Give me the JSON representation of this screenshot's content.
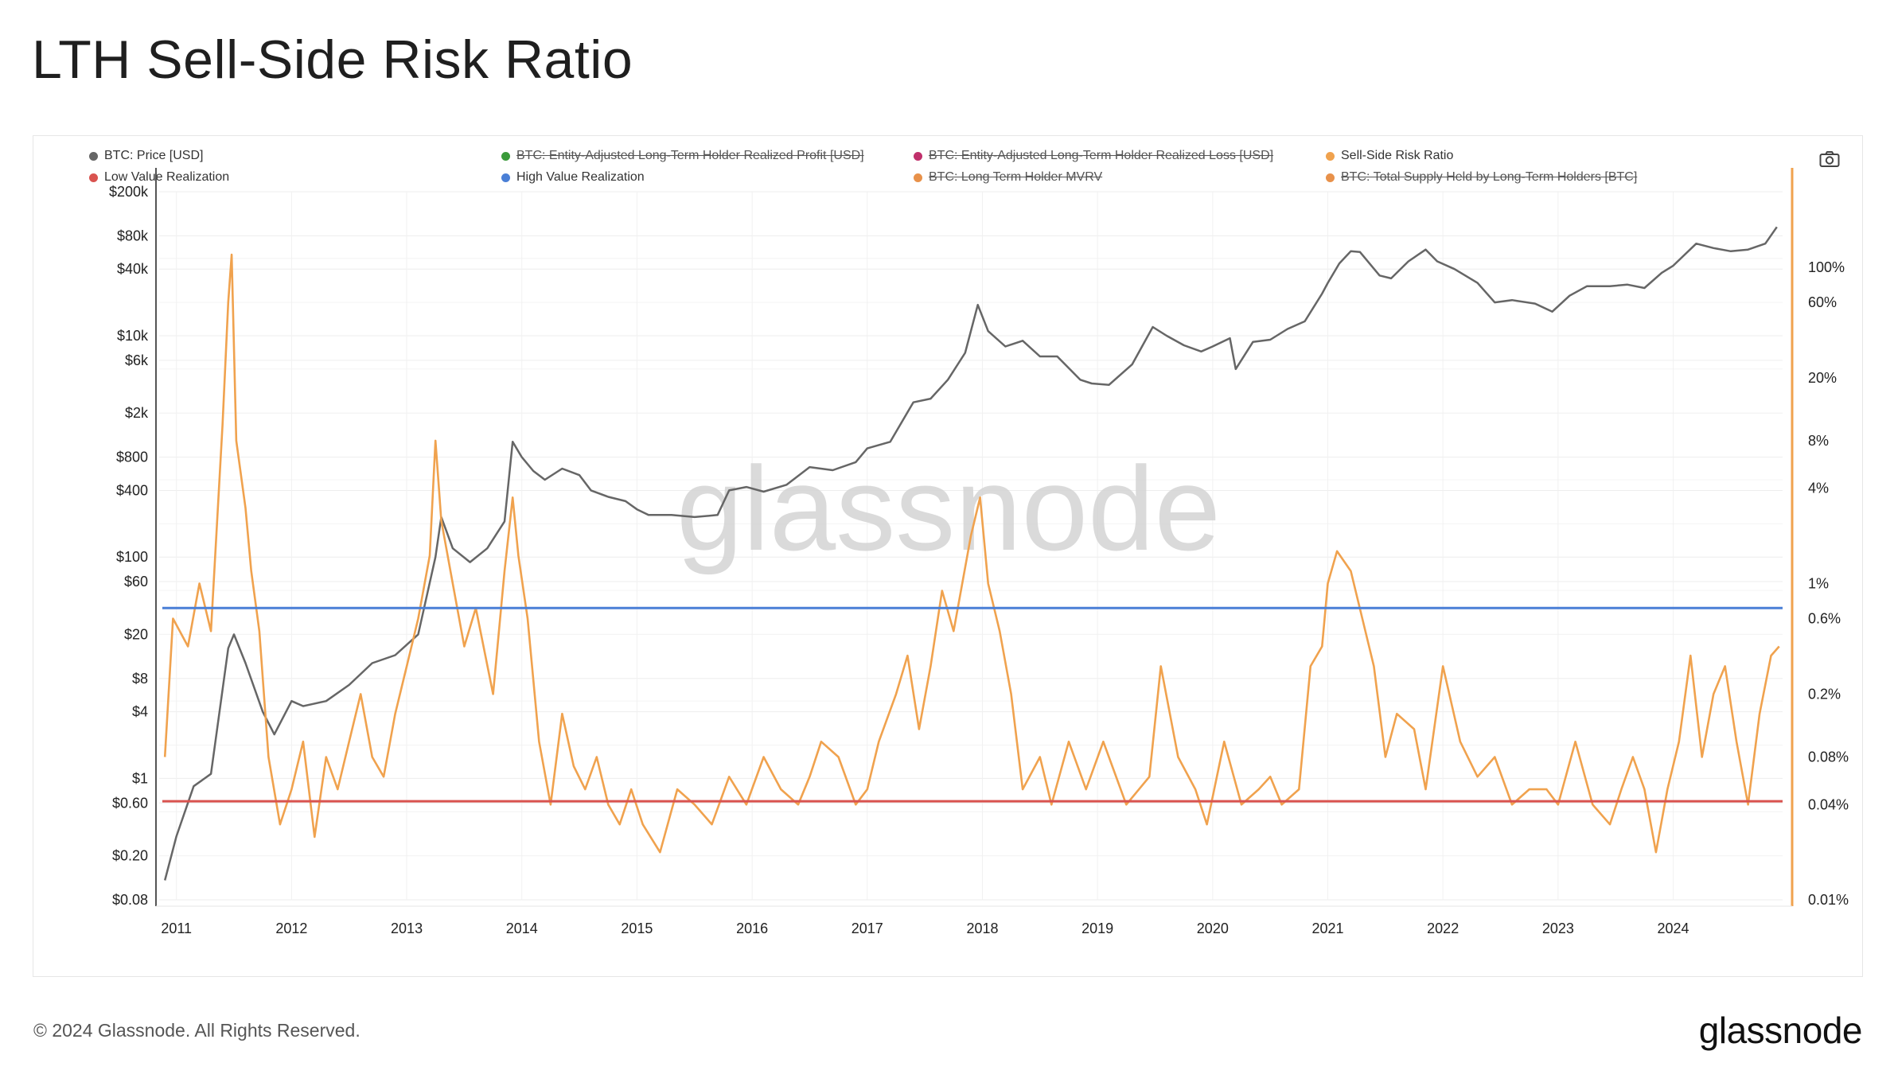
{
  "page": {
    "title": "LTH Sell-Side Risk Ratio",
    "copyright": "© 2024 Glassnode. All Rights Reserved.",
    "logo_text": "glassnode",
    "watermark": "glassnode"
  },
  "legend": [
    {
      "label": "BTC: Price [USD]",
      "color": "#666666",
      "active": true
    },
    {
      "label": "BTC: Entity-Adjusted Long-Term Holder Realized Profit [USD]",
      "color": "#3a9a3a",
      "active": false
    },
    {
      "label": "BTC: Entity-Adjusted Long-Term Holder Realized Loss [USD]",
      "color": "#c0306b",
      "active": false
    },
    {
      "label": "Sell-Side Risk Ratio",
      "color": "#f0a24e",
      "active": true
    },
    {
      "label": "Low Value Realization",
      "color": "#d9534f",
      "active": true
    },
    {
      "label": "High Value Realization",
      "color": "#4a7fd6",
      "active": true
    },
    {
      "label": "BTC: Long Term Holder MVRV",
      "color": "#e8914a",
      "active": false
    },
    {
      "label": "BTC: Total Supply Held by Long-Term Holders [BTC]",
      "color": "#e8914a",
      "active": false
    }
  ],
  "toolbar": {
    "camera_icon": "camera-icon"
  },
  "chart_data": {
    "type": "line",
    "x_axis": {
      "tick_labels": [
        "2011",
        "2012",
        "2013",
        "2014",
        "2015",
        "2016",
        "2017",
        "2018",
        "2019",
        "2020",
        "2021",
        "2022",
        "2023",
        "2024"
      ],
      "range": [
        2010.85,
        2024.95
      ]
    },
    "y_left": {
      "scale": "log",
      "tick_labels": [
        "$200k",
        "$80k",
        "$40k",
        "$10k",
        "$6k",
        "$2k",
        "$800",
        "$400",
        "$100",
        "$60",
        "$20",
        "$8",
        "$4",
        "$1",
        "$0.60",
        "$0.20",
        "$0.08"
      ],
      "tick_values": [
        200000,
        80000,
        40000,
        10000,
        6000,
        2000,
        800,
        400,
        100,
        60,
        20,
        8,
        4,
        1,
        0.6,
        0.2,
        0.08
      ],
      "range": [
        0.08,
        200000
      ]
    },
    "y_right": {
      "scale": "log",
      "tick_labels": [
        "100%",
        "60%",
        "20%",
        "8%",
        "4%",
        "1%",
        "0.6%",
        "0.2%",
        "0.08%",
        "0.04%",
        "0.01%"
      ],
      "tick_values": [
        100,
        60,
        20,
        8,
        4,
        1,
        0.6,
        0.2,
        0.08,
        0.04,
        0.01
      ],
      "range": [
        0.01,
        300
      ]
    },
    "grid": true,
    "series": [
      {
        "name": "BTC: Price [USD]",
        "axis": "left",
        "color": "#666666",
        "x": [
          2010.9,
          2011.0,
          2011.15,
          2011.3,
          2011.45,
          2011.5,
          2011.6,
          2011.75,
          2011.85,
          2012.0,
          2012.1,
          2012.3,
          2012.5,
          2012.7,
          2012.9,
          2013.1,
          2013.25,
          2013.3,
          2013.4,
          2013.55,
          2013.7,
          2013.85,
          2013.92,
          2014.0,
          2014.1,
          2014.2,
          2014.35,
          2014.5,
          2014.6,
          2014.75,
          2014.9,
          2015.0,
          2015.1,
          2015.3,
          2015.5,
          2015.7,
          2015.8,
          2015.95,
          2016.1,
          2016.3,
          2016.5,
          2016.7,
          2016.9,
          2017.0,
          2017.2,
          2017.4,
          2017.55,
          2017.7,
          2017.85,
          2017.96,
          2018.05,
          2018.2,
          2018.35,
          2018.5,
          2018.65,
          2018.85,
          2018.95,
          2019.1,
          2019.3,
          2019.48,
          2019.6,
          2019.75,
          2019.9,
          2020.0,
          2020.15,
          2020.2,
          2020.35,
          2020.5,
          2020.65,
          2020.8,
          2020.95,
          2021.0,
          2021.1,
          2021.2,
          2021.28,
          2021.45,
          2021.55,
          2021.7,
          2021.85,
          2021.95,
          2022.1,
          2022.3,
          2022.45,
          2022.6,
          2022.8,
          2022.95,
          2023.1,
          2023.25,
          2023.45,
          2023.6,
          2023.75,
          2023.9,
          2024.0,
          2024.2,
          2024.35,
          2024.5,
          2024.65,
          2024.8,
          2024.9
        ],
        "y": [
          0.12,
          0.3,
          0.85,
          1.1,
          15,
          20,
          11,
          4,
          2.5,
          5,
          4.5,
          5,
          7,
          11,
          13,
          20,
          100,
          230,
          120,
          90,
          120,
          210,
          1100,
          800,
          600,
          500,
          630,
          550,
          400,
          350,
          320,
          270,
          240,
          240,
          230,
          240,
          400,
          430,
          390,
          450,
          650,
          610,
          720,
          960,
          1100,
          2500,
          2700,
          4000,
          7000,
          19000,
          11000,
          8000,
          9000,
          6500,
          6500,
          4000,
          3700,
          3600,
          5500,
          12000,
          10000,
          8200,
          7200,
          8000,
          9500,
          5000,
          8800,
          9200,
          11500,
          13500,
          24000,
          30000,
          45000,
          58000,
          57000,
          35000,
          33000,
          47000,
          60000,
          47000,
          40000,
          30000,
          20000,
          21000,
          19500,
          16500,
          23000,
          28000,
          28000,
          29000,
          27000,
          37000,
          43000,
          68000,
          62000,
          58000,
          60000,
          68000,
          96000
        ]
      },
      {
        "name": "Sell-Side Risk Ratio",
        "axis": "right",
        "color": "#f0a24e",
        "x": [
          2010.9,
          2010.97,
          2011.1,
          2011.2,
          2011.3,
          2011.4,
          2011.45,
          2011.48,
          2011.52,
          2011.6,
          2011.65,
          2011.72,
          2011.8,
          2011.9,
          2012.0,
          2012.1,
          2012.2,
          2012.3,
          2012.4,
          2012.5,
          2012.6,
          2012.7,
          2012.8,
          2012.9,
          2013.0,
          2013.1,
          2013.2,
          2013.25,
          2013.3,
          2013.4,
          2013.5,
          2013.6,
          2013.75,
          2013.85,
          2013.92,
          2013.97,
          2014.05,
          2014.15,
          2014.25,
          2014.35,
          2014.45,
          2014.55,
          2014.65,
          2014.75,
          2014.85,
          2014.95,
          2015.05,
          2015.2,
          2015.35,
          2015.5,
          2015.65,
          2015.8,
          2015.95,
          2016.1,
          2016.25,
          2016.4,
          2016.5,
          2016.6,
          2016.75,
          2016.9,
          2017.0,
          2017.1,
          2017.25,
          2017.35,
          2017.45,
          2017.55,
          2017.65,
          2017.75,
          2017.9,
          2017.98,
          2018.05,
          2018.15,
          2018.25,
          2018.35,
          2018.5,
          2018.6,
          2018.75,
          2018.9,
          2019.05,
          2019.25,
          2019.45,
          2019.55,
          2019.7,
          2019.85,
          2019.95,
          2020.1,
          2020.25,
          2020.4,
          2020.5,
          2020.6,
          2020.75,
          2020.85,
          2020.95,
          2021.0,
          2021.08,
          2021.2,
          2021.3,
          2021.4,
          2021.5,
          2021.6,
          2021.75,
          2021.85,
          2022.0,
          2022.15,
          2022.3,
          2022.45,
          2022.6,
          2022.75,
          2022.9,
          2023.0,
          2023.15,
          2023.3,
          2023.45,
          2023.55,
          2023.65,
          2023.75,
          2023.85,
          2023.95,
          2024.05,
          2024.15,
          2024.25,
          2024.35,
          2024.45,
          2024.55,
          2024.65,
          2024.75,
          2024.85,
          2024.92
        ],
        "y": [
          0.08,
          0.6,
          0.4,
          1.0,
          0.5,
          10,
          60,
          120,
          8,
          3,
          1.2,
          0.5,
          0.08,
          0.03,
          0.05,
          0.1,
          0.025,
          0.08,
          0.05,
          0.1,
          0.2,
          0.08,
          0.06,
          0.15,
          0.3,
          0.6,
          1.5,
          8,
          2.5,
          1.0,
          0.4,
          0.7,
          0.2,
          1.2,
          3.5,
          1.5,
          0.6,
          0.1,
          0.04,
          0.15,
          0.07,
          0.05,
          0.08,
          0.04,
          0.03,
          0.05,
          0.03,
          0.02,
          0.05,
          0.04,
          0.03,
          0.06,
          0.04,
          0.08,
          0.05,
          0.04,
          0.06,
          0.1,
          0.08,
          0.04,
          0.05,
          0.1,
          0.2,
          0.35,
          0.12,
          0.3,
          0.9,
          0.5,
          2.0,
          3.5,
          1.0,
          0.5,
          0.2,
          0.05,
          0.08,
          0.04,
          0.1,
          0.05,
          0.1,
          0.04,
          0.06,
          0.3,
          0.08,
          0.05,
          0.03,
          0.1,
          0.04,
          0.05,
          0.06,
          0.04,
          0.05,
          0.3,
          0.4,
          1.0,
          1.6,
          1.2,
          0.6,
          0.3,
          0.08,
          0.15,
          0.12,
          0.05,
          0.3,
          0.1,
          0.06,
          0.08,
          0.04,
          0.05,
          0.05,
          0.04,
          0.1,
          0.04,
          0.03,
          0.05,
          0.08,
          0.05,
          0.02,
          0.05,
          0.1,
          0.35,
          0.08,
          0.2,
          0.3,
          0.1,
          0.04,
          0.15,
          0.35,
          0.4
        ]
      },
      {
        "name": "High Value Realization",
        "axis": "right",
        "color": "#4a7fd6",
        "y_constant": 0.7
      },
      {
        "name": "Low Value Realization",
        "axis": "right",
        "color": "#d9534f",
        "y_constant": 0.042
      }
    ]
  }
}
